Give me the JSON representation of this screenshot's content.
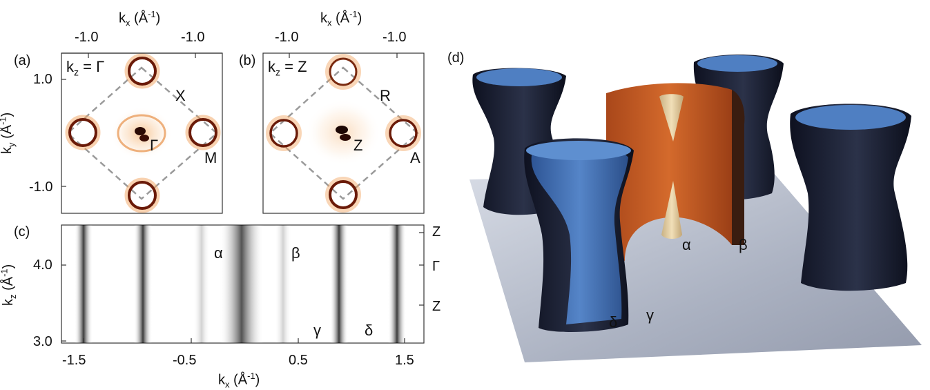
{
  "panels": {
    "a": {
      "tag": "(a)",
      "kz_label": "k",
      "kz_sub": "z",
      "kz_value": "= Γ",
      "points": {
        "center": "Γ",
        "edge": "X",
        "corner": "M"
      }
    },
    "b": {
      "tag": "(b)",
      "kz_label": "k",
      "kz_sub": "z",
      "kz_value": "= Z",
      "points": {
        "center": "Z",
        "edge": "R",
        "corner": "A"
      }
    },
    "c": {
      "tag": "(c)",
      "bands": {
        "alpha": "α",
        "beta": "β",
        "gamma": "γ",
        "delta": "δ"
      },
      "right_ticks": [
        "Z",
        "Γ",
        "Z"
      ]
    },
    "d": {
      "tag": "(d)",
      "bands": {
        "alpha": "α",
        "beta": "β",
        "gamma": "γ",
        "delta": "δ"
      }
    }
  },
  "axes": {
    "top_title": "k",
    "top_title_sub": "x",
    "top_title_unit": " (Å",
    "top_title_exp": "-1",
    "top_title_close": ")",
    "top_ticks": [
      "-1.0",
      "-1.0"
    ],
    "top_ticks_b": [
      "-1.0",
      "-1.0"
    ],
    "ky_title": "k",
    "ky_sub": "y",
    "ky_unit": " (Å",
    "ky_exp": "-1",
    "ky_close": ")",
    "ky_ticks": [
      "1.0",
      "-1.0"
    ],
    "kz_title": "k",
    "kz_sub": "z",
    "kz_unit": " (Å",
    "kz_exp": "-1",
    "kz_close": ")",
    "kz_ticks": [
      "4.0",
      "3.0"
    ],
    "kx_bottom_title": "k",
    "kx_bottom_sub": "x",
    "kx_bottom_unit": " (Å",
    "kx_bottom_exp": "-1",
    "kx_bottom_close": ")",
    "kx_bottom_ticks": [
      "-1.5",
      "-0.5",
      "0.5",
      "1.5"
    ]
  },
  "colors": {
    "arpes_ring": "#6a1a08",
    "arpes_glow": "#f3a15a",
    "blue_surface": "#3f6fb0",
    "dark_surface": "#15192b",
    "orange_surface": "#c45a22",
    "cone": "#e6cfa0",
    "floor": "#8e97ab"
  }
}
